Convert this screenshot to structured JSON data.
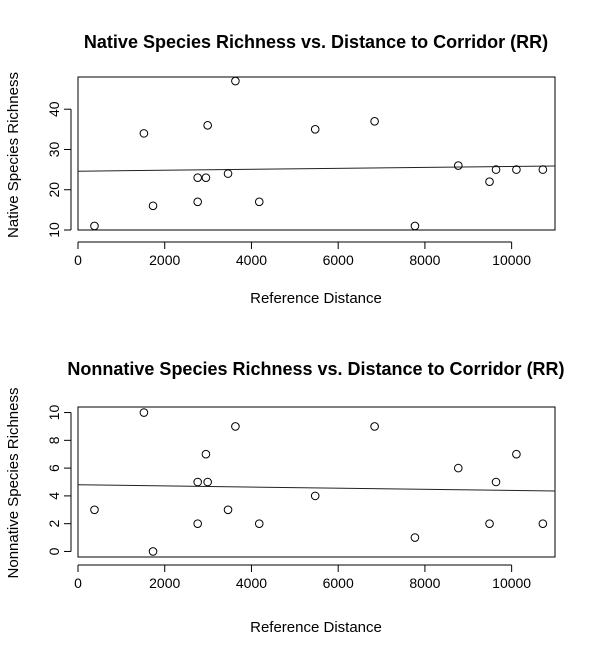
{
  "chart_data": [
    {
      "type": "scatter",
      "title": "Native Species Richness vs. Distance to Corridor (RR)",
      "xlabel": "Reference Distance",
      "ylabel": "Native Species Richness",
      "xlim": [
        0,
        11000
      ],
      "ylim": [
        10,
        48
      ],
      "xticks": [
        "0",
        "2000",
        "4000",
        "6000",
        "8000",
        "10000"
      ],
      "yticks": [
        "10",
        "20",
        "30",
        "40"
      ],
      "grid": false,
      "points": [
        {
          "x": 380,
          "y": 11
        },
        {
          "x": 1520,
          "y": 34
        },
        {
          "x": 1730,
          "y": 16
        },
        {
          "x": 2760,
          "y": 23
        },
        {
          "x": 2760,
          "y": 17
        },
        {
          "x": 2950,
          "y": 23
        },
        {
          "x": 2990,
          "y": 36
        },
        {
          "x": 3460,
          "y": 24
        },
        {
          "x": 3630,
          "y": 47
        },
        {
          "x": 4180,
          "y": 17
        },
        {
          "x": 5470,
          "y": 35
        },
        {
          "x": 6840,
          "y": 37
        },
        {
          "x": 7770,
          "y": 11
        },
        {
          "x": 8770,
          "y": 26
        },
        {
          "x": 9490,
          "y": 22
        },
        {
          "x": 9640,
          "y": 25
        },
        {
          "x": 10110,
          "y": 25
        },
        {
          "x": 10720,
          "y": 25
        }
      ],
      "trend_line": {
        "x": [
          0,
          11000
        ],
        "y": [
          24.6,
          25.9
        ]
      }
    },
    {
      "type": "scatter",
      "title": "Nonnative Species Richness vs. Distance to Corridor (RR)",
      "xlabel": "Reference Distance",
      "ylabel": "Nonnative Species Richness",
      "xlim": [
        0,
        11000
      ],
      "ylim": [
        -0.4,
        10.4
      ],
      "xticks": [
        "0",
        "2000",
        "4000",
        "6000",
        "8000",
        "10000"
      ],
      "yticks": [
        "0",
        "2",
        "4",
        "6",
        "8",
        "10"
      ],
      "grid": false,
      "points": [
        {
          "x": 380,
          "y": 3
        },
        {
          "x": 1520,
          "y": 10
        },
        {
          "x": 1730,
          "y": 0
        },
        {
          "x": 2760,
          "y": 5
        },
        {
          "x": 2760,
          "y": 2
        },
        {
          "x": 2950,
          "y": 7
        },
        {
          "x": 2990,
          "y": 5
        },
        {
          "x": 3460,
          "y": 3
        },
        {
          "x": 3630,
          "y": 9
        },
        {
          "x": 4180,
          "y": 2
        },
        {
          "x": 5470,
          "y": 4
        },
        {
          "x": 6840,
          "y": 9
        },
        {
          "x": 7770,
          "y": 1
        },
        {
          "x": 8770,
          "y": 6
        },
        {
          "x": 9490,
          "y": 2
        },
        {
          "x": 9640,
          "y": 5
        },
        {
          "x": 10110,
          "y": 7
        },
        {
          "x": 10720,
          "y": 2
        }
      ],
      "trend_line": {
        "x": [
          0,
          11000
        ],
        "y": [
          4.8,
          4.35
        ]
      }
    }
  ]
}
